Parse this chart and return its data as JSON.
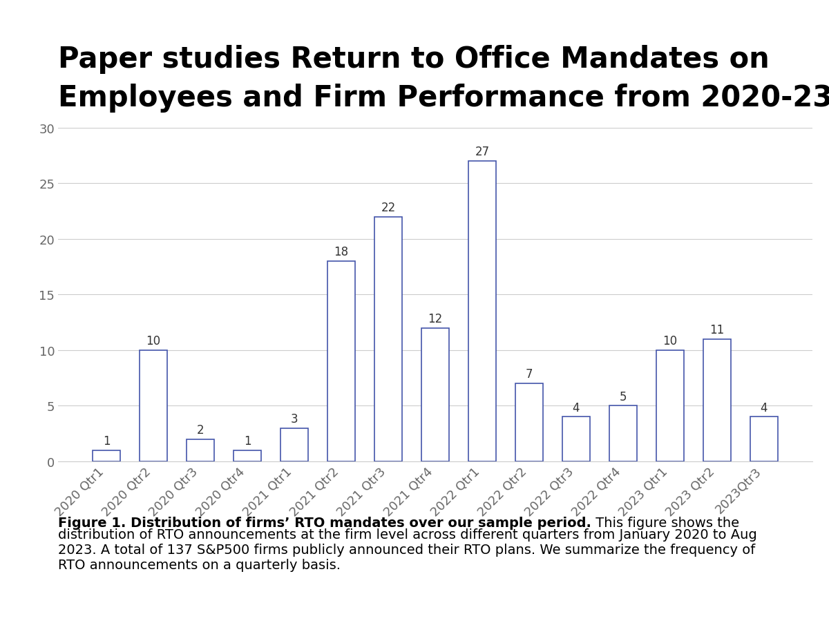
{
  "categories": [
    "2020 Qtr1",
    "2020 Qtr2",
    "2020 Qtr3",
    "2020 Qtr4",
    "2021 Qtr1",
    "2021 Qtr2",
    "2021 Qtr3",
    "2021 Qtr4",
    "2022 Qtr1",
    "2022 Qtr2",
    "2022 Qtr3",
    "2022 Qtr4",
    "2023 Qtr1",
    "2023 Qtr2",
    "2023Qtr3"
  ],
  "values": [
    1,
    10,
    2,
    1,
    3,
    18,
    22,
    12,
    27,
    7,
    4,
    5,
    10,
    11,
    4
  ],
  "bar_color": "#ffffff",
  "bar_edge_color": "#4455aa",
  "bar_edge_width": 1.2,
  "title_line1": "Paper studies Return to Office Mandates on",
  "title_line2": "Employees and Firm Performance from 2020-23",
  "title_fontsize": 30,
  "title_fontweight": "bold",
  "title_color": "#000000",
  "ylim": [
    0,
    30
  ],
  "yticks": [
    0,
    5,
    10,
    15,
    20,
    25,
    30
  ],
  "tick_label_fontsize": 13,
  "value_label_fontsize": 12,
  "grid_color": "#cccccc",
  "grid_linewidth": 0.8,
  "background_color": "#ffffff",
  "caption_bold": "Figure 1. Distribution of firms’ RTO mandates over our sample period.",
  "caption_normal": " This figure shows the\ndistribution of RTO announcements at the firm level across different quarters from January 2020 to Aug\n2023. A total of 137 S&P500 firms publicly announced their RTO plans. We summarize the frequency of\nRTO announcements on a quarterly basis.",
  "caption_fontsize": 14,
  "value_label_color": "#333333",
  "ytick_color": "#666666",
  "xtick_color": "#666666"
}
